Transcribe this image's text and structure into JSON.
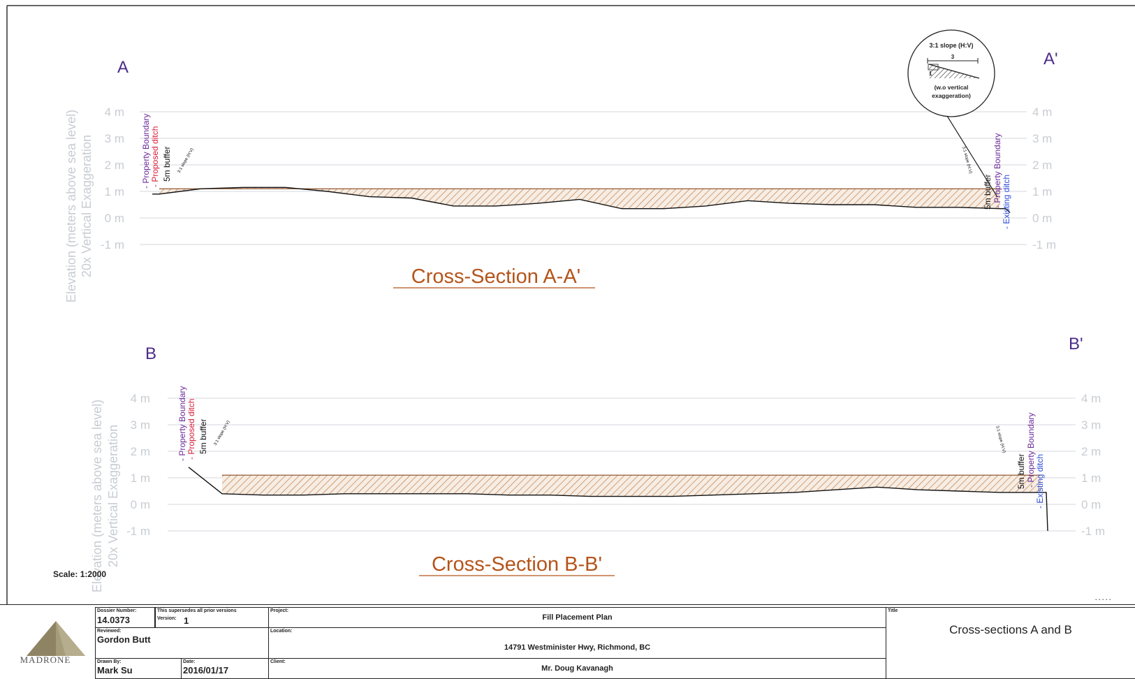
{
  "sections": [
    {
      "left_label": "A",
      "right_label": "A'",
      "title": "Cross-Section A-A'",
      "y_axis_label_line1": "Elevation (meters above sea level)",
      "y_axis_label_line2": "20x Vertical Exaggeration",
      "ticks": [
        "4 m",
        "3 m",
        "2 m",
        "1 m",
        "0 m",
        "-1 m"
      ],
      "left_annotations": {
        "property_boundary": "- Property Boundary",
        "ditch": "- Proposed ditch",
        "buffer": "5m buffer",
        "slope": "3:1 slope (H:V)"
      },
      "right_annotations": {
        "slope": "3:1 slope (H:V)",
        "buffer": "5m buffer",
        "property_boundary": "- Property Boundary",
        "ditch": "- Existing ditch"
      },
      "fill_level_m": 1.1,
      "ground_profile_m": [
        0.9,
        1.1,
        1.15,
        1.15,
        1.0,
        0.8,
        0.75,
        0.45,
        0.45,
        0.55,
        0.7,
        0.35,
        0.35,
        0.45,
        0.65,
        0.55,
        0.5,
        0.5,
        0.4,
        0.4,
        0.35
      ]
    },
    {
      "left_label": "B",
      "right_label": "B'",
      "title": "Cross-Section B-B'",
      "y_axis_label_line1": "Elevation (meters above sea level)",
      "y_axis_label_line2": "20x Vertical Exaggeration",
      "ticks": [
        "4 m",
        "3 m",
        "2 m",
        "1 m",
        "0 m",
        "-1 m"
      ],
      "left_annotations": {
        "property_boundary": "- Property Boundary",
        "ditch": "- Proposed ditch",
        "buffer": "5m buffer",
        "slope": "3:1 slope (H:V)"
      },
      "right_annotations": {
        "slope": "3:1 slope (H:V)",
        "buffer": "5m buffer",
        "property_boundary": "- Property Boundary",
        "ditch": "- Existing ditch"
      },
      "fill_level_m": 1.1,
      "ground_profile_m": [
        0.4,
        0.35,
        0.35,
        0.4,
        0.4,
        0.4,
        0.4,
        0.35,
        0.35,
        0.3,
        0.3,
        0.3,
        0.35,
        0.4,
        0.45,
        0.55,
        0.65,
        0.55,
        0.5,
        0.45,
        0.45
      ]
    }
  ],
  "inset": {
    "title": "3:1 slope (H:V)",
    "run": "3",
    "rise": "1",
    "note_line1": "(w.o vertical",
    "note_line2": "exaggeration)"
  },
  "scale_text": "Scale: 1:2000",
  "title_block": {
    "company": "MADRONE",
    "dossier_label": "Dossier Number:",
    "dossier_value": "14.0373",
    "supersedes_label": "This supersedes all prior versions",
    "version_label": "Version:",
    "version_value": "1",
    "reviewed_label": "Reviewed:",
    "reviewed_value": "Gordon Butt",
    "drawn_label": "Drawn By:",
    "drawn_value": "Mark Su",
    "date_label": "Date:",
    "date_value": "2016/01/17",
    "project_label": "Project:",
    "project_value": "Fill Placement Plan",
    "location_label": "Location:",
    "location_value": "14791 Westminister Hwy, Richmond, BC",
    "client_label": "Client:",
    "client_value": "Mr. Doug Kavanagh",
    "title_label": "Title",
    "title_value": "Cross-sections A and B"
  },
  "colors": {
    "axis_text": "#c8ccd2",
    "section_letter": "#4b2a8a",
    "section_title": "#b5541a",
    "fill_hatch": "#c0763a",
    "fill_bg": "#f6ede4",
    "property_boundary": "#6a2a9a",
    "proposed_ditch": "#d81b3a",
    "existing_ditch": "#2a4ad8"
  }
}
